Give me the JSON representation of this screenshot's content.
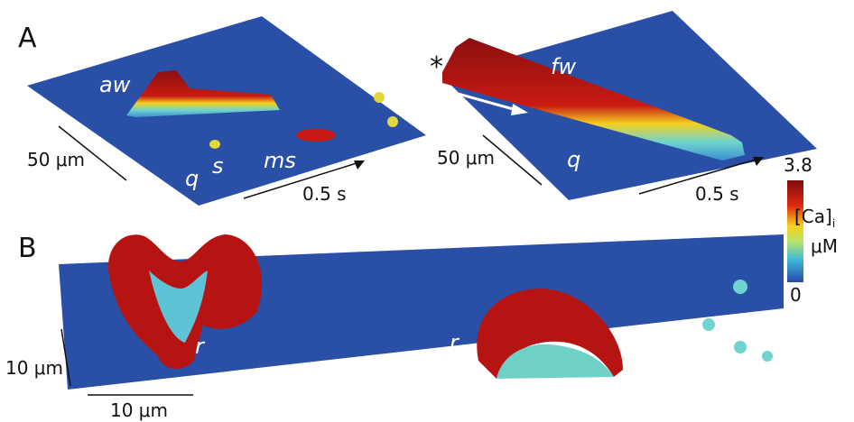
{
  "panel_a": {
    "label": "A",
    "left": {
      "annotations": [
        "aw",
        "s",
        "q",
        "ms"
      ],
      "space_scale": "50 μm",
      "time_scale": "0.5 s"
    },
    "right": {
      "marker": "*",
      "annotations": [
        "fw",
        "q"
      ],
      "space_scale": "50 μm",
      "time_scale": "0.5 s"
    }
  },
  "colorbar": {
    "max": 3.8,
    "min": 0,
    "label": "[Ca]",
    "label_sub": "i",
    "unit": "μM"
  },
  "panel_b": {
    "label": "B",
    "annotations": [
      "r",
      "r"
    ],
    "vertical_scale": "10 μm",
    "horizontal_scale": "10 μm"
  }
}
